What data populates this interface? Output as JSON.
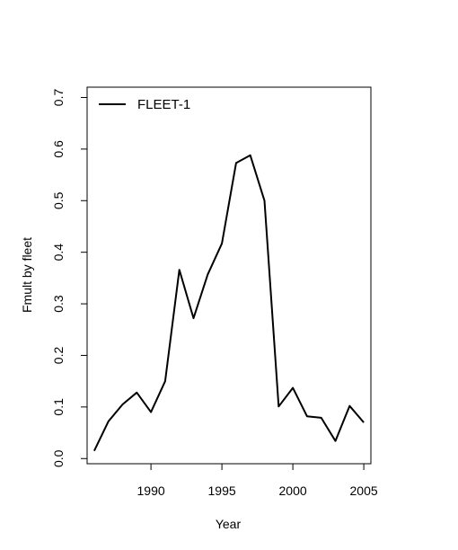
{
  "chart_data": {
    "type": "line",
    "title": "",
    "xlabel": "Year",
    "ylabel": "Fmult by fleet",
    "xlim": [
      1985.5,
      2005.5
    ],
    "ylim": [
      -0.01,
      0.72
    ],
    "x_ticks": [
      1990,
      1995,
      2000,
      2005
    ],
    "y_ticks": [
      "0.0",
      "0.1",
      "0.2",
      "0.3",
      "0.4",
      "0.5",
      "0.6",
      "0.7"
    ],
    "legend_position": "top-left",
    "grid": false,
    "x": [
      1986,
      1987,
      1988,
      1989,
      1990,
      1991,
      1992,
      1993,
      1994,
      1995,
      1996,
      1997,
      1998,
      1999,
      2000,
      2001,
      2002,
      2003,
      2004,
      2005
    ],
    "series": [
      {
        "name": "FLEET-1",
        "color": "#000000",
        "values": [
          0.015,
          0.072,
          0.105,
          0.128,
          0.09,
          0.15,
          0.366,
          0.272,
          0.357,
          0.417,
          0.573,
          0.588,
          0.5,
          0.101,
          0.137,
          0.082,
          0.079,
          0.034,
          0.102,
          0.07
        ]
      }
    ]
  }
}
